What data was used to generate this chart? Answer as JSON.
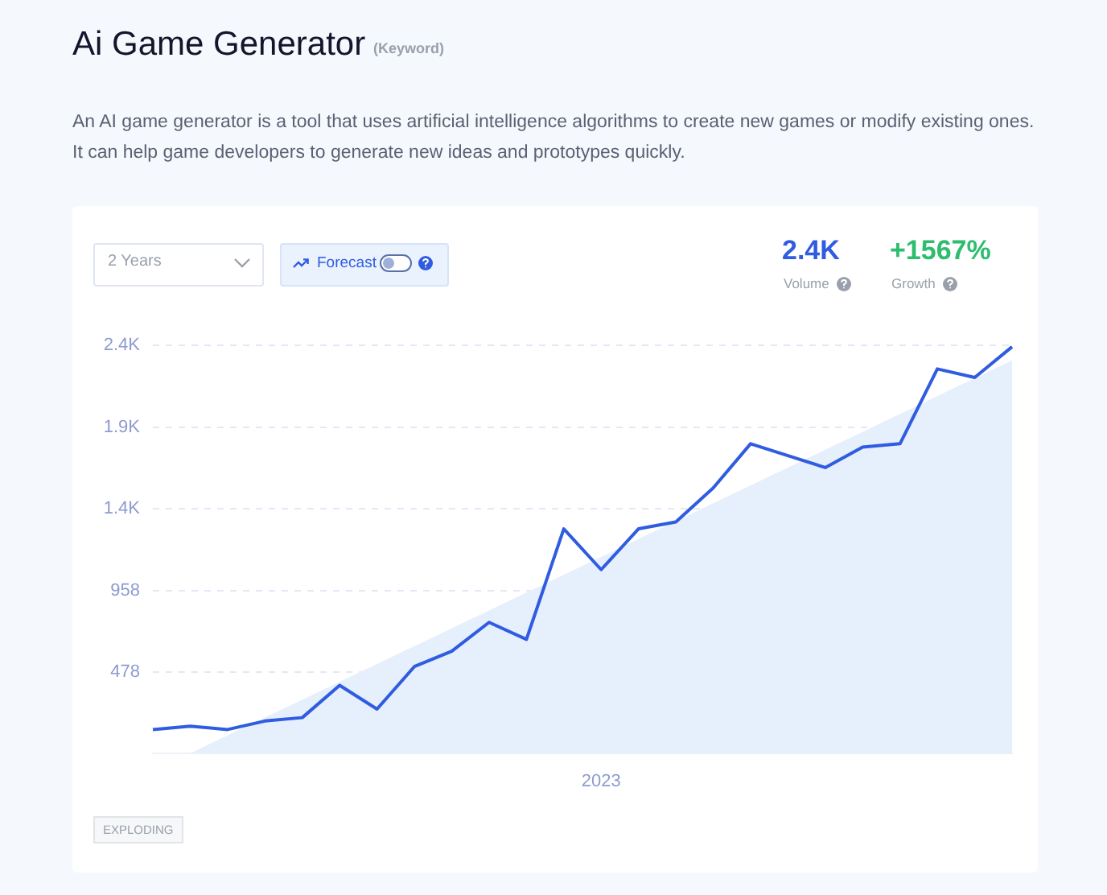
{
  "chart_data": {
    "type": "line",
    "title": "Ai Game Generator",
    "subtitle": "An AI game generator is a tool that uses artificial intelligence algorithms to create new games or modify existing ones. It can help game developers to generate new ideas and prototypes quickly.",
    "annotations": [
      "(Keyword)",
      "2 Years",
      "Forecast",
      "2.4K",
      "Volume",
      "+1567%",
      "Growth",
      "EXPLODING"
    ],
    "categories": [
      null,
      null,
      null,
      null,
      null,
      null,
      null,
      null,
      null,
      null,
      null,
      null,
      "2023",
      null,
      null,
      null,
      null,
      null,
      null,
      null,
      null,
      null,
      null,
      null
    ],
    "series": [
      {
        "type": "area",
        "color": "#e6effc",
        "values": [
          null,
          0,
          null,
          null,
          null,
          null,
          null,
          null,
          null,
          null,
          null,
          null,
          null,
          null,
          null,
          null,
          null,
          null,
          null,
          null,
          null,
          null,
          null,
          2310
        ]
      },
      {
        "color": "#2f5ce0",
        "values": [
          140,
          160,
          140,
          190,
          210,
          400,
          260,
          510,
          600,
          770,
          670,
          1320,
          1080,
          1320,
          1360,
          1560,
          1820,
          1750,
          1680,
          1800,
          1820,
          2260,
          2210,
          2390
        ]
      }
    ],
    "ylim": [
      0,
      2398
    ],
    "yticks": [
      478,
      958,
      {
        "value": 1438,
        "label": "1.4K"
      },
      {
        "value": 1918,
        "label": "1.9K"
      },
      {
        "value": 2398,
        "label": "2.4K"
      }
    ],
    "grid": "y",
    "marker": "none"
  }
}
